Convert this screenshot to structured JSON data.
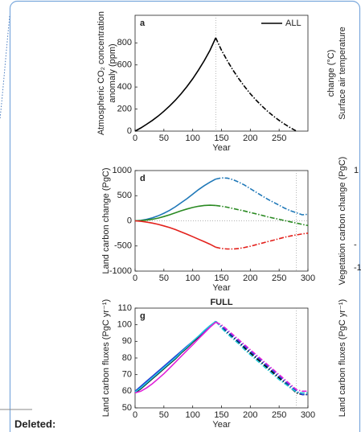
{
  "chart_data": [
    {
      "type": "line",
      "label": "a",
      "ylabel": [
        "Atmospheric CO₂ concentration",
        "anomaly (ppm)"
      ],
      "xlabel": "Year",
      "x": [
        0,
        10,
        20,
        30,
        40,
        50,
        60,
        70,
        80,
        90,
        100,
        110,
        120,
        130,
        140,
        150,
        160,
        170,
        180,
        190,
        200,
        210,
        220,
        230,
        240,
        250,
        260,
        270,
        280
      ],
      "series": [
        {
          "name": "ALL",
          "color": "#000000",
          "values": [
            0,
            29,
            62,
            97,
            136,
            180,
            228,
            281,
            339,
            404,
            475,
            553,
            638,
            733,
            846,
            733,
            638,
            553,
            475,
            404,
            339,
            281,
            228,
            180,
            136,
            97,
            62,
            29,
            0
          ]
        }
      ],
      "xlim": [
        0,
        300
      ],
      "xticks": [
        0,
        50,
        100,
        150,
        200,
        250
      ],
      "ylim": [
        0,
        1050
      ],
      "yticks": [
        0,
        200,
        400,
        600,
        800
      ],
      "dashed_from": 140,
      "vlines": [
        140
      ],
      "legend": "upper right"
    },
    {
      "type": "line",
      "label": "d",
      "ylabel": [
        "Land carbon change (PgC)"
      ],
      "xlabel": "Year",
      "x": [
        0,
        10,
        20,
        30,
        40,
        50,
        60,
        70,
        80,
        90,
        100,
        110,
        120,
        130,
        140,
        150,
        160,
        170,
        180,
        190,
        200,
        210,
        220,
        230,
        240,
        250,
        260,
        270,
        280,
        290,
        300
      ],
      "series": [
        {
          "color": "#1f78b8",
          "values": [
            0,
            10,
            30,
            60,
            100,
            150,
            210,
            280,
            360,
            440,
            530,
            620,
            700,
            770,
            830,
            855,
            850,
            820,
            770,
            710,
            640,
            570,
            500,
            430,
            370,
            310,
            250,
            200,
            160,
            120,
            130
          ]
        },
        {
          "color": "#2a8a22",
          "values": [
            0,
            5,
            15,
            30,
            55,
            85,
            120,
            160,
            200,
            235,
            265,
            290,
            305,
            310,
            305,
            290,
            270,
            245,
            220,
            195,
            165,
            140,
            110,
            80,
            55,
            30,
            5,
            -20,
            -45,
            -70,
            -95
          ]
        },
        {
          "color": "#e3211c",
          "values": [
            0,
            -10,
            -25,
            -45,
            -70,
            -100,
            -135,
            -175,
            -220,
            -265,
            -315,
            -365,
            -415,
            -465,
            -525,
            -550,
            -560,
            -560,
            -550,
            -530,
            -505,
            -475,
            -445,
            -415,
            -385,
            -355,
            -325,
            -300,
            -280,
            -260,
            -245
          ]
        }
      ],
      "xlim": [
        0,
        300
      ],
      "xticks": [
        0,
        50,
        100,
        150,
        200,
        250,
        300
      ],
      "ylim": [
        -1000,
        1000
      ],
      "yticks": [
        -1000,
        -500,
        0,
        500,
        1000
      ],
      "dashed_from": 140,
      "vlines": [
        280
      ],
      "hline": 0
    },
    {
      "type": "line",
      "label": "g",
      "title": "FULL",
      "ylabel": [
        "Land carbon fluxes (PgC yr⁻¹)"
      ],
      "xlabel": "Year",
      "x": [
        0,
        10,
        20,
        30,
        40,
        50,
        60,
        70,
        80,
        90,
        100,
        110,
        120,
        130,
        140,
        150,
        160,
        170,
        180,
        190,
        200,
        210,
        220,
        230,
        240,
        250,
        260,
        270,
        280,
        290,
        300
      ],
      "series": [
        {
          "color": "#000000",
          "values": [
            59,
            61.5,
            64.5,
            67.5,
            70.5,
            73.5,
            76.5,
            79.5,
            83,
            86,
            89.5,
            92.5,
            96,
            99,
            102,
            98.5,
            95.5,
            92.5,
            89.5,
            86,
            83,
            80,
            77,
            74,
            71,
            68,
            65,
            62,
            59,
            58,
            58
          ]
        },
        {
          "color": "#1f3fd8",
          "values": [
            60,
            63,
            66,
            69,
            72,
            75,
            78,
            81,
            84,
            87,
            90,
            93,
            96,
            99,
            102,
            99,
            96,
            93,
            90,
            87,
            84,
            81,
            78,
            75,
            72,
            69,
            66,
            63,
            60,
            58,
            58
          ]
        },
        {
          "color": "#22c8d8",
          "values": [
            59.5,
            62,
            65,
            68,
            71,
            74,
            77,
            80,
            83.5,
            86.5,
            90,
            93,
            96.5,
            99.5,
            102,
            98,
            94.5,
            91.5,
            88.5,
            85,
            82,
            79,
            76,
            73,
            70,
            67,
            64.5,
            62,
            59.5,
            59,
            59
          ]
        },
        {
          "color": "#e020d8",
          "values": [
            59,
            60,
            62,
            64.5,
            67.5,
            70.5,
            74,
            77.5,
            81,
            84.5,
            88,
            91.5,
            95,
            98.5,
            101.5,
            100,
            97,
            94,
            91,
            88,
            85,
            82,
            79,
            76,
            73,
            70,
            67,
            64,
            61,
            60,
            60
          ]
        }
      ],
      "xlim": [
        0,
        300
      ],
      "xticks": [
        0,
        50,
        100,
        150,
        200,
        250,
        300
      ],
      "ylim": [
        50,
        110
      ],
      "yticks": [
        50,
        60,
        70,
        80,
        90,
        100,
        110
      ],
      "dashed_from": 140,
      "vlines": [
        280
      ]
    }
  ],
  "right_column": [
    {
      "label": [
        "Surface air temperature",
        "change (°C)"
      ],
      "ticks": []
    },
    {
      "label": [
        "Vegetation carbon change (PgC)"
      ],
      "ticks": [
        "1",
        "-",
        "-1"
      ]
    },
    {
      "label": [
        "Land carbon fluxes (PgC yr⁻¹)"
      ],
      "ticks": []
    }
  ],
  "deleted": "Deleted:"
}
